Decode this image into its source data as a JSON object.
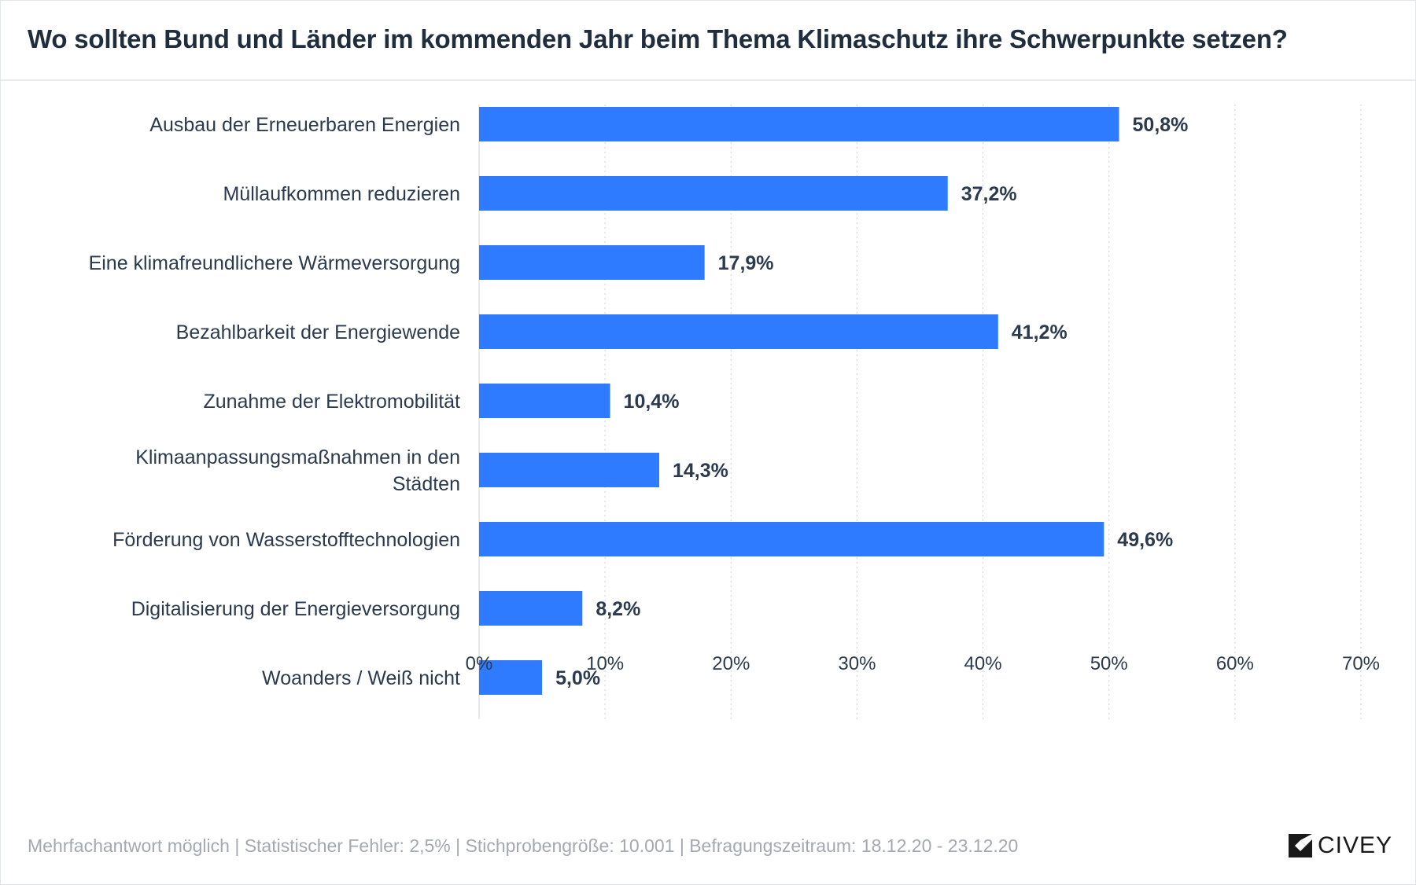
{
  "title": "Wo sollten Bund und Länder im kommenden Jahr beim Thema Klimaschutz ihre Schwerpunkte setzen?",
  "footer_note": "Mehrfachantwort möglich | Statistischer Fehler: 2,5% | Stichprobengröße: 10.001 | Befragungszeitraum: 18.12.20 - 23.12.20",
  "logo": {
    "text": "CIVEY",
    "icon": "civey-logo-icon"
  },
  "colors": {
    "bar": "#2f7bff",
    "text": "#2b3a4e",
    "value_label": "#2b3a4e",
    "grid": "#d6d9de",
    "footer": "#a3a9b1"
  },
  "chart_data": {
    "type": "bar",
    "orientation": "horizontal",
    "categories": [
      "Ausbau der Erneuerbaren Energien",
      "Müllaufkommen reduzieren",
      "Eine klimafreundlichere Wärmeversorgung",
      "Bezahlbarkeit der Energiewende",
      "Zunahme der Elektromobilität",
      "Klimaanpassungsmaßnahmen in den Städten",
      "Förderung von Wasserstofftechnologien",
      "Digitalisierung der Energieversorgung",
      "Woanders / Weiß nicht"
    ],
    "category_lines": [
      [
        "Ausbau der Erneuerbaren Energien"
      ],
      [
        "Müllaufkommen reduzieren"
      ],
      [
        "Eine klimafreundlichere Wärmeversorgung"
      ],
      [
        "Bezahlbarkeit der Energiewende"
      ],
      [
        "Zunahme der Elektromobilität"
      ],
      [
        "Klimaanpassungsmaßnahmen in den",
        "Städten"
      ],
      [
        "Förderung von Wasserstofftechnologien"
      ],
      [
        "Digitalisierung der Energieversorgung"
      ],
      [
        "Woanders / Weiß nicht"
      ]
    ],
    "values": [
      50.8,
      37.2,
      17.9,
      41.2,
      10.4,
      14.3,
      49.6,
      8.2,
      5.0
    ],
    "value_labels": [
      "50,8%",
      "37,2%",
      "17,9%",
      "41,2%",
      "10,4%",
      "14,3%",
      "49,6%",
      "8,2%",
      "5,0%"
    ],
    "xlim": [
      0,
      70
    ],
    "xticks": [
      0,
      10,
      20,
      30,
      40,
      50,
      60,
      70
    ],
    "xtick_labels": [
      "0%",
      "10%",
      "20%",
      "30%",
      "40%",
      "50%",
      "60%",
      "70%"
    ],
    "xlabel": "",
    "ylabel": "",
    "grid": "vertical dotted",
    "legend": "none"
  }
}
